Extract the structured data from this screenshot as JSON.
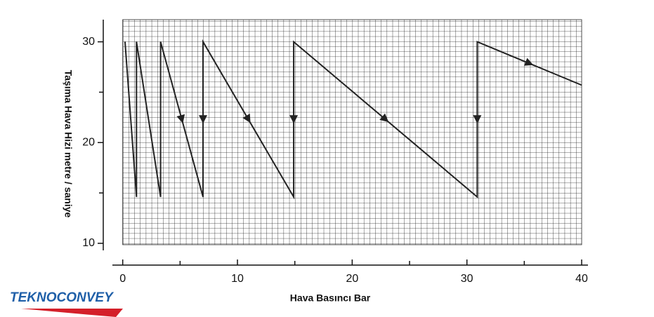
{
  "chart_data": {
    "type": "line",
    "x_label": "Hava Basıncı Bar",
    "y_label": "Taşıma Hava Hizi metre / saniye",
    "logo": "TEKNOCONVEY",
    "x": [
      0.2,
      1.2,
      1.2,
      3.3,
      3.3,
      7.0,
      7.0,
      14.9,
      14.9,
      30.9,
      30.9,
      40
    ],
    "series": [
      {
        "color": "#222222",
        "values": [
          30,
          14.6,
          30,
          14.6,
          30,
          14.6,
          30,
          14.6,
          30,
          14.6,
          30,
          25.7
        ]
      }
    ],
    "xlim": [
      -0.9,
      40.55
    ],
    "xticks": [
      0,
      10,
      20,
      30,
      40
    ],
    "xminor": [
      5,
      15,
      25,
      35
    ],
    "ylim": [
      9.3,
      32.2
    ],
    "yticks": [
      10,
      20,
      30
    ],
    "yminor": [
      15,
      25
    ],
    "grid": true
  }
}
